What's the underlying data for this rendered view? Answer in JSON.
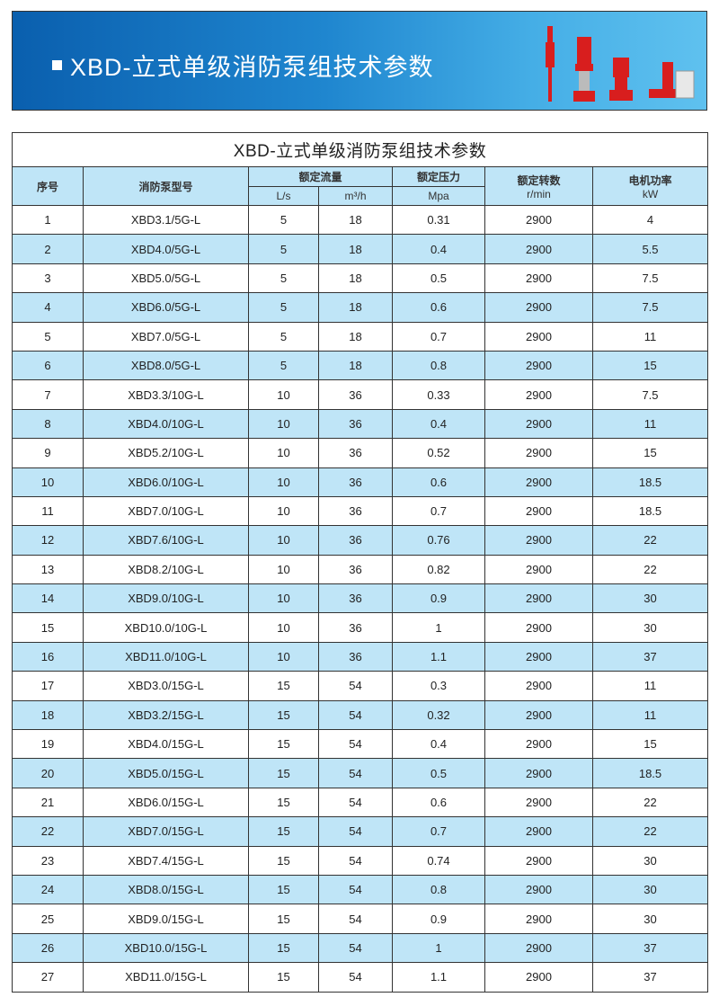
{
  "banner": {
    "title": "XBD-立式单级消防泵组技术参数"
  },
  "table": {
    "title": "XBD-立式单级消防泵组技术参数",
    "headers": {
      "index": "序号",
      "model": "消防泵型号",
      "flow": "额定流量",
      "flow_ls": "L/s",
      "flow_m3h": "m³/h",
      "pressure": "额定压力",
      "pressure_unit": "Mpa",
      "speed": "额定转数",
      "speed_unit": "r/min",
      "power": "电机功率",
      "power_unit": "kW"
    },
    "rows": [
      [
        "1",
        "XBD3.1/5G-L",
        "5",
        "18",
        "0.31",
        "2900",
        "4"
      ],
      [
        "2",
        "XBD4.0/5G-L",
        "5",
        "18",
        "0.4",
        "2900",
        "5.5"
      ],
      [
        "3",
        "XBD5.0/5G-L",
        "5",
        "18",
        "0.5",
        "2900",
        "7.5"
      ],
      [
        "4",
        "XBD6.0/5G-L",
        "5",
        "18",
        "0.6",
        "2900",
        "7.5"
      ],
      [
        "5",
        "XBD7.0/5G-L",
        "5",
        "18",
        "0.7",
        "2900",
        "11"
      ],
      [
        "6",
        "XBD8.0/5G-L",
        "5",
        "18",
        "0.8",
        "2900",
        "15"
      ],
      [
        "7",
        "XBD3.3/10G-L",
        "10",
        "36",
        "0.33",
        "2900",
        "7.5"
      ],
      [
        "8",
        "XBD4.0/10G-L",
        "10",
        "36",
        "0.4",
        "2900",
        "11"
      ],
      [
        "9",
        "XBD5.2/10G-L",
        "10",
        "36",
        "0.52",
        "2900",
        "15"
      ],
      [
        "10",
        "XBD6.0/10G-L",
        "10",
        "36",
        "0.6",
        "2900",
        "18.5"
      ],
      [
        "11",
        "XBD7.0/10G-L",
        "10",
        "36",
        "0.7",
        "2900",
        "18.5"
      ],
      [
        "12",
        "XBD7.6/10G-L",
        "10",
        "36",
        "0.76",
        "2900",
        "22"
      ],
      [
        "13",
        "XBD8.2/10G-L",
        "10",
        "36",
        "0.82",
        "2900",
        "22"
      ],
      [
        "14",
        "XBD9.0/10G-L",
        "10",
        "36",
        "0.9",
        "2900",
        "30"
      ],
      [
        "15",
        "XBD10.0/10G-L",
        "10",
        "36",
        "1",
        "2900",
        "30"
      ],
      [
        "16",
        "XBD11.0/10G-L",
        "10",
        "36",
        "1.1",
        "2900",
        "37"
      ],
      [
        "17",
        "XBD3.0/15G-L",
        "15",
        "54",
        "0.3",
        "2900",
        "11"
      ],
      [
        "18",
        "XBD3.2/15G-L",
        "15",
        "54",
        "0.32",
        "2900",
        "11"
      ],
      [
        "19",
        "XBD4.0/15G-L",
        "15",
        "54",
        "0.4",
        "2900",
        "15"
      ],
      [
        "20",
        "XBD5.0/15G-L",
        "15",
        "54",
        "0.5",
        "2900",
        "18.5"
      ],
      [
        "21",
        "XBD6.0/15G-L",
        "15",
        "54",
        "0.6",
        "2900",
        "22"
      ],
      [
        "22",
        "XBD7.0/15G-L",
        "15",
        "54",
        "0.7",
        "2900",
        "22"
      ],
      [
        "23",
        "XBD7.4/15G-L",
        "15",
        "54",
        "0.74",
        "2900",
        "30"
      ],
      [
        "24",
        "XBD8.0/15G-L",
        "15",
        "54",
        "0.8",
        "2900",
        "30"
      ],
      [
        "25",
        "XBD9.0/15G-L",
        "15",
        "54",
        "0.9",
        "2900",
        "30"
      ],
      [
        "26",
        "XBD10.0/15G-L",
        "15",
        "54",
        "1",
        "2900",
        "37"
      ],
      [
        "27",
        "XBD11.0/15G-L",
        "15",
        "54",
        "1.1",
        "2900",
        "37"
      ]
    ]
  },
  "colors": {
    "banner_start": "#0a5fae",
    "banner_end": "#5fc1ef",
    "stripe": "#bfe5f7",
    "pump_red": "#d81e1e"
  }
}
